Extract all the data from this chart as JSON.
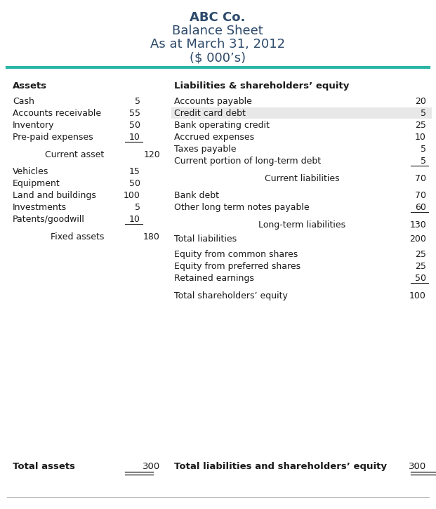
{
  "title_lines": [
    "ABC Co.",
    "Balance Sheet",
    "As at March 31, 2012",
    "($ 000’s)"
  ],
  "title_color": "#2d4a6b",
  "teal_line_color": "#2ab5a5",
  "bg_color": "#ffffff",
  "highlight_row_color": "#e8e8e8",
  "text_color": "#1a1a1a",
  "assets_header": "Assets",
  "liabilities_header": "Liabilities & shareholders’ equity",
  "current_assets": [
    [
      "Cash",
      5
    ],
    [
      "Accounts receivable",
      55
    ],
    [
      "Inventory",
      50
    ],
    [
      "Pre-paid expenses",
      10
    ]
  ],
  "current_asset_total_label": "Current asset",
  "current_asset_total": 120,
  "fixed_assets": [
    [
      "Vehicles",
      15
    ],
    [
      "Equipment",
      50
    ],
    [
      "Land and buildings",
      100
    ],
    [
      "Investments",
      5
    ],
    [
      "Patents/goodwill",
      10
    ]
  ],
  "fixed_asset_total_label": "Fixed assets",
  "fixed_asset_total": 180,
  "total_assets_label": "Total assets",
  "total_assets": 300,
  "current_liabilities": [
    [
      "Accounts payable",
      20,
      false
    ],
    [
      "Credit card debt",
      5,
      true
    ],
    [
      "Bank operating credit",
      25,
      false
    ],
    [
      "Accrued expenses",
      10,
      false
    ],
    [
      "Taxes payable",
      5,
      false
    ],
    [
      "Current portion of long-term debt",
      5,
      false
    ]
  ],
  "current_liabilities_total_label": "Current liabilities",
  "current_liabilities_total": 70,
  "long_term_liabilities": [
    [
      "Bank debt",
      70
    ],
    [
      "Other long term notes payable",
      60
    ]
  ],
  "long_term_liabilities_total_label": "Long-term liabilities",
  "long_term_liabilities_total": 130,
  "total_liabilities_label": "Total liabilities",
  "total_liabilities": 200,
  "equity_items": [
    [
      "Equity from common shares",
      25
    ],
    [
      "Equity from preferred shares",
      25
    ],
    [
      "Retained earnings",
      50
    ]
  ],
  "total_equity_label": "Total shareholders’ equity",
  "total_equity": 100,
  "total_liab_equity_label": "Total liabilities and shareholders’ equity",
  "total_liab_equity": 300,
  "font_size_title": 13,
  "font_size_header": 9.5,
  "font_size_body": 9,
  "font_size_total": 9,
  "font_size_grand_total": 9.5
}
